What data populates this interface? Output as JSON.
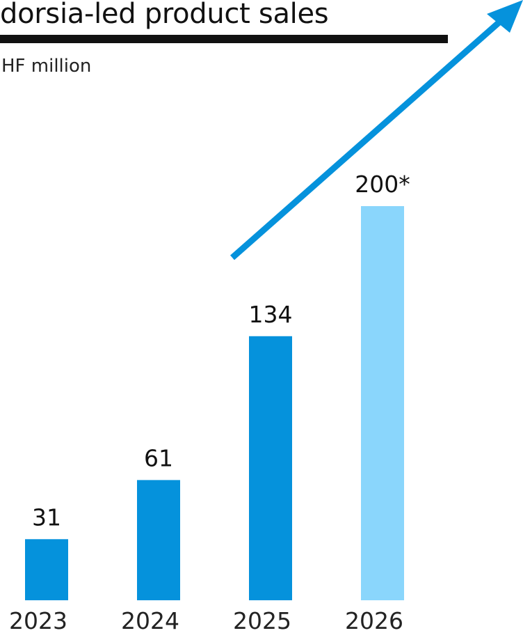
{
  "title": "dorsia-led product sales",
  "unit_label": "HF million",
  "colors": {
    "actual": "#0592dc",
    "forecast": "#8ad6fc",
    "arrow": "#0592dc",
    "rule": "#111111"
  },
  "chart_data": {
    "type": "bar",
    "title": "dorsia-led product sales",
    "ylabel": "HF million",
    "xlabel": "",
    "ylim": [
      0,
      200
    ],
    "grid": false,
    "legend": "none",
    "categories": [
      "2023",
      "2024",
      "2025",
      "2026"
    ],
    "values": [
      31,
      61,
      134,
      200
    ],
    "value_labels": [
      "31",
      "61",
      "134",
      "200*"
    ],
    "forecast": [
      false,
      false,
      false,
      true
    ],
    "annotations": [
      {
        "type": "arrow",
        "icon": "trend-arrow-icon",
        "meaning": "upward trend"
      }
    ]
  }
}
